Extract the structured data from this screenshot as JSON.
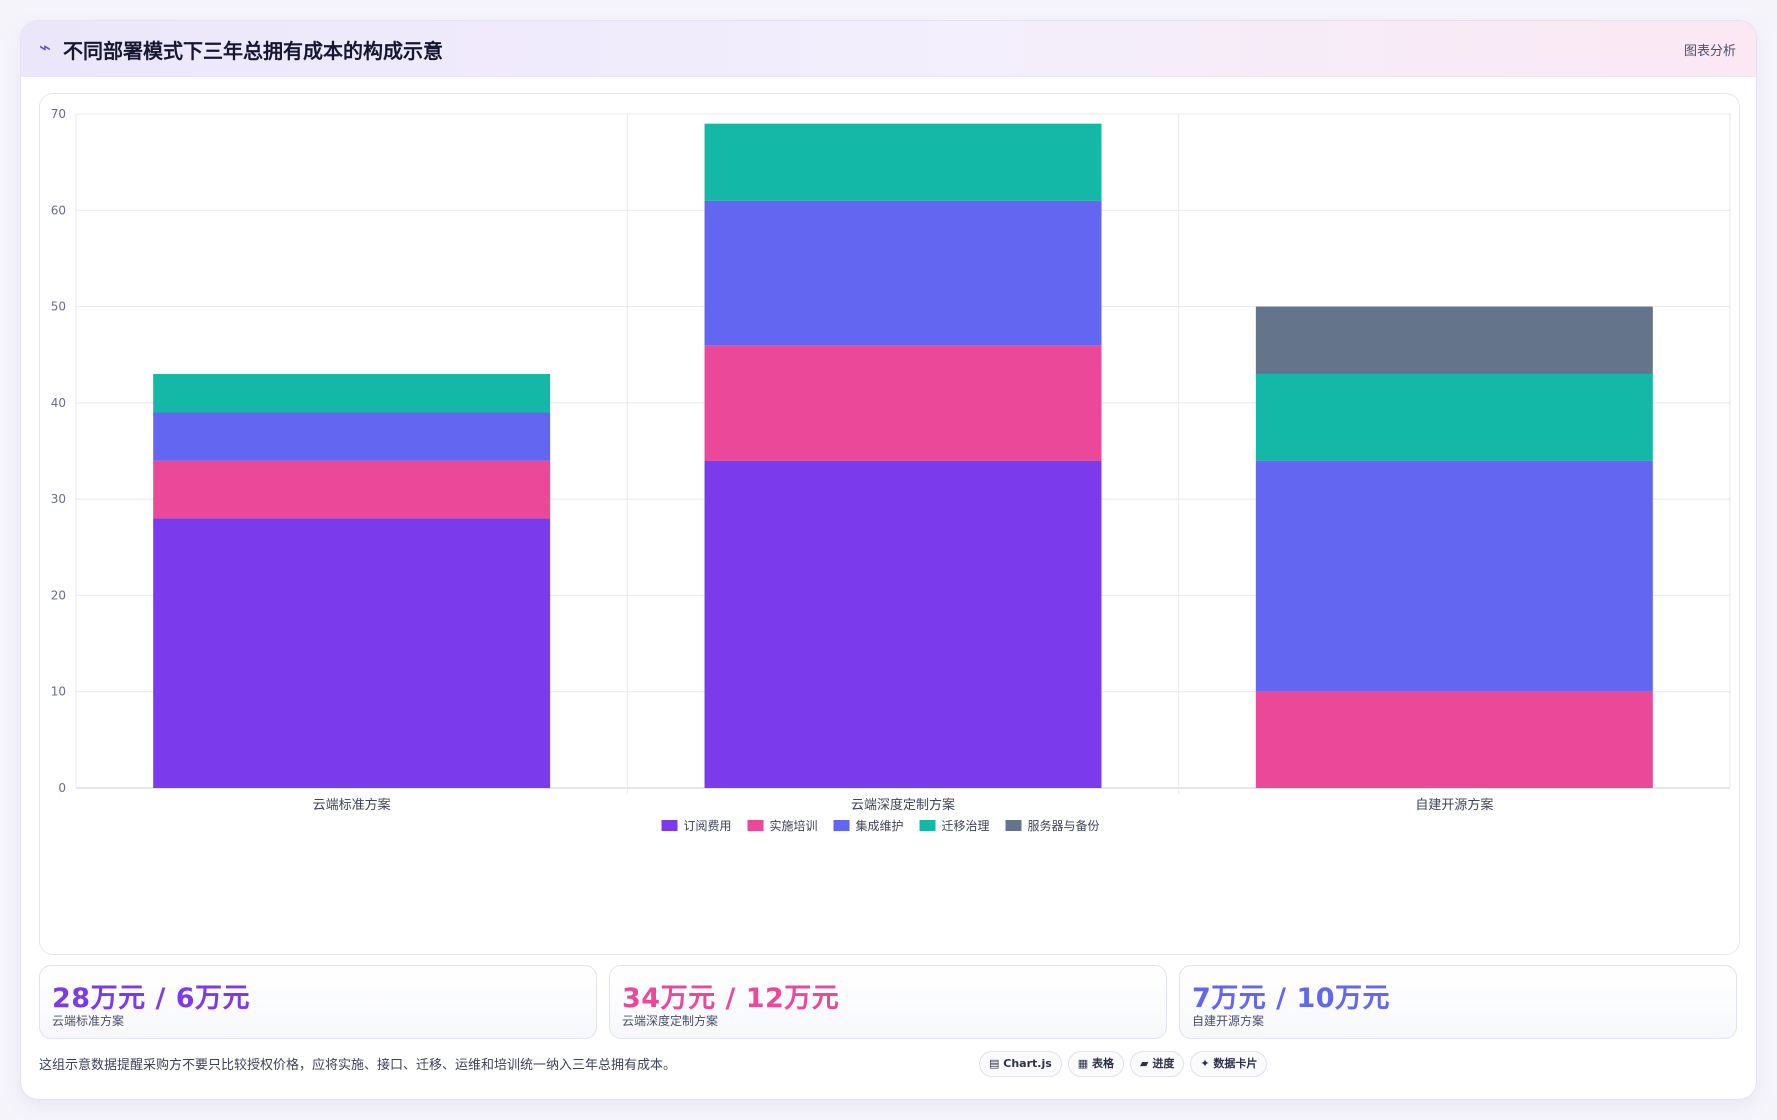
{
  "header": {
    "icon": "⌁",
    "title": "不同部署模式下三年总拥有成本的构成示意",
    "tag": "图表分析"
  },
  "chart_data": {
    "type": "bar",
    "stacked": true,
    "categories": [
      "云端标准方案",
      "云端深度定制方案",
      "自建开源方案"
    ],
    "series": [
      {
        "name": "订阅费用",
        "color": "#7c3aed",
        "values": [
          28,
          34,
          0
        ]
      },
      {
        "name": "实施培训",
        "color": "#ec4899",
        "values": [
          6,
          12,
          10
        ]
      },
      {
        "name": "集成维护",
        "color": "#6366f1",
        "values": [
          5,
          15,
          24
        ]
      },
      {
        "name": "迁移治理",
        "color": "#14b8a6",
        "values": [
          4,
          8,
          9
        ]
      },
      {
        "name": "服务器与备份",
        "color": "#64748b",
        "values": [
          0,
          0,
          7
        ]
      }
    ],
    "ylim": [
      0,
      70
    ],
    "yticks": [
      0,
      10,
      20,
      30,
      40,
      50,
      60,
      70
    ],
    "grid": true,
    "legend": "bottom"
  },
  "stats": [
    {
      "value": "28万元 / 6万元",
      "label": "云端标准方案",
      "color": "#7c3aed"
    },
    {
      "value": "34万元 / 12万元",
      "label": "云端深度定制方案",
      "color": "#ec4899"
    },
    {
      "value": "7万元 / 10万元",
      "label": "自建开源方案",
      "color": "#6366f1"
    }
  ],
  "note": "这组示意数据提醒采购方不要只比较授权价格，应将实施、接口、迁移、运维和培训统一纳入三年总拥有成本。",
  "pills": [
    {
      "icon": "▤",
      "label": "Chart.js"
    },
    {
      "icon": "▦",
      "label": "表格"
    },
    {
      "icon": "▰",
      "label": "进度"
    },
    {
      "icon": "✦",
      "label": "数据卡片"
    }
  ]
}
